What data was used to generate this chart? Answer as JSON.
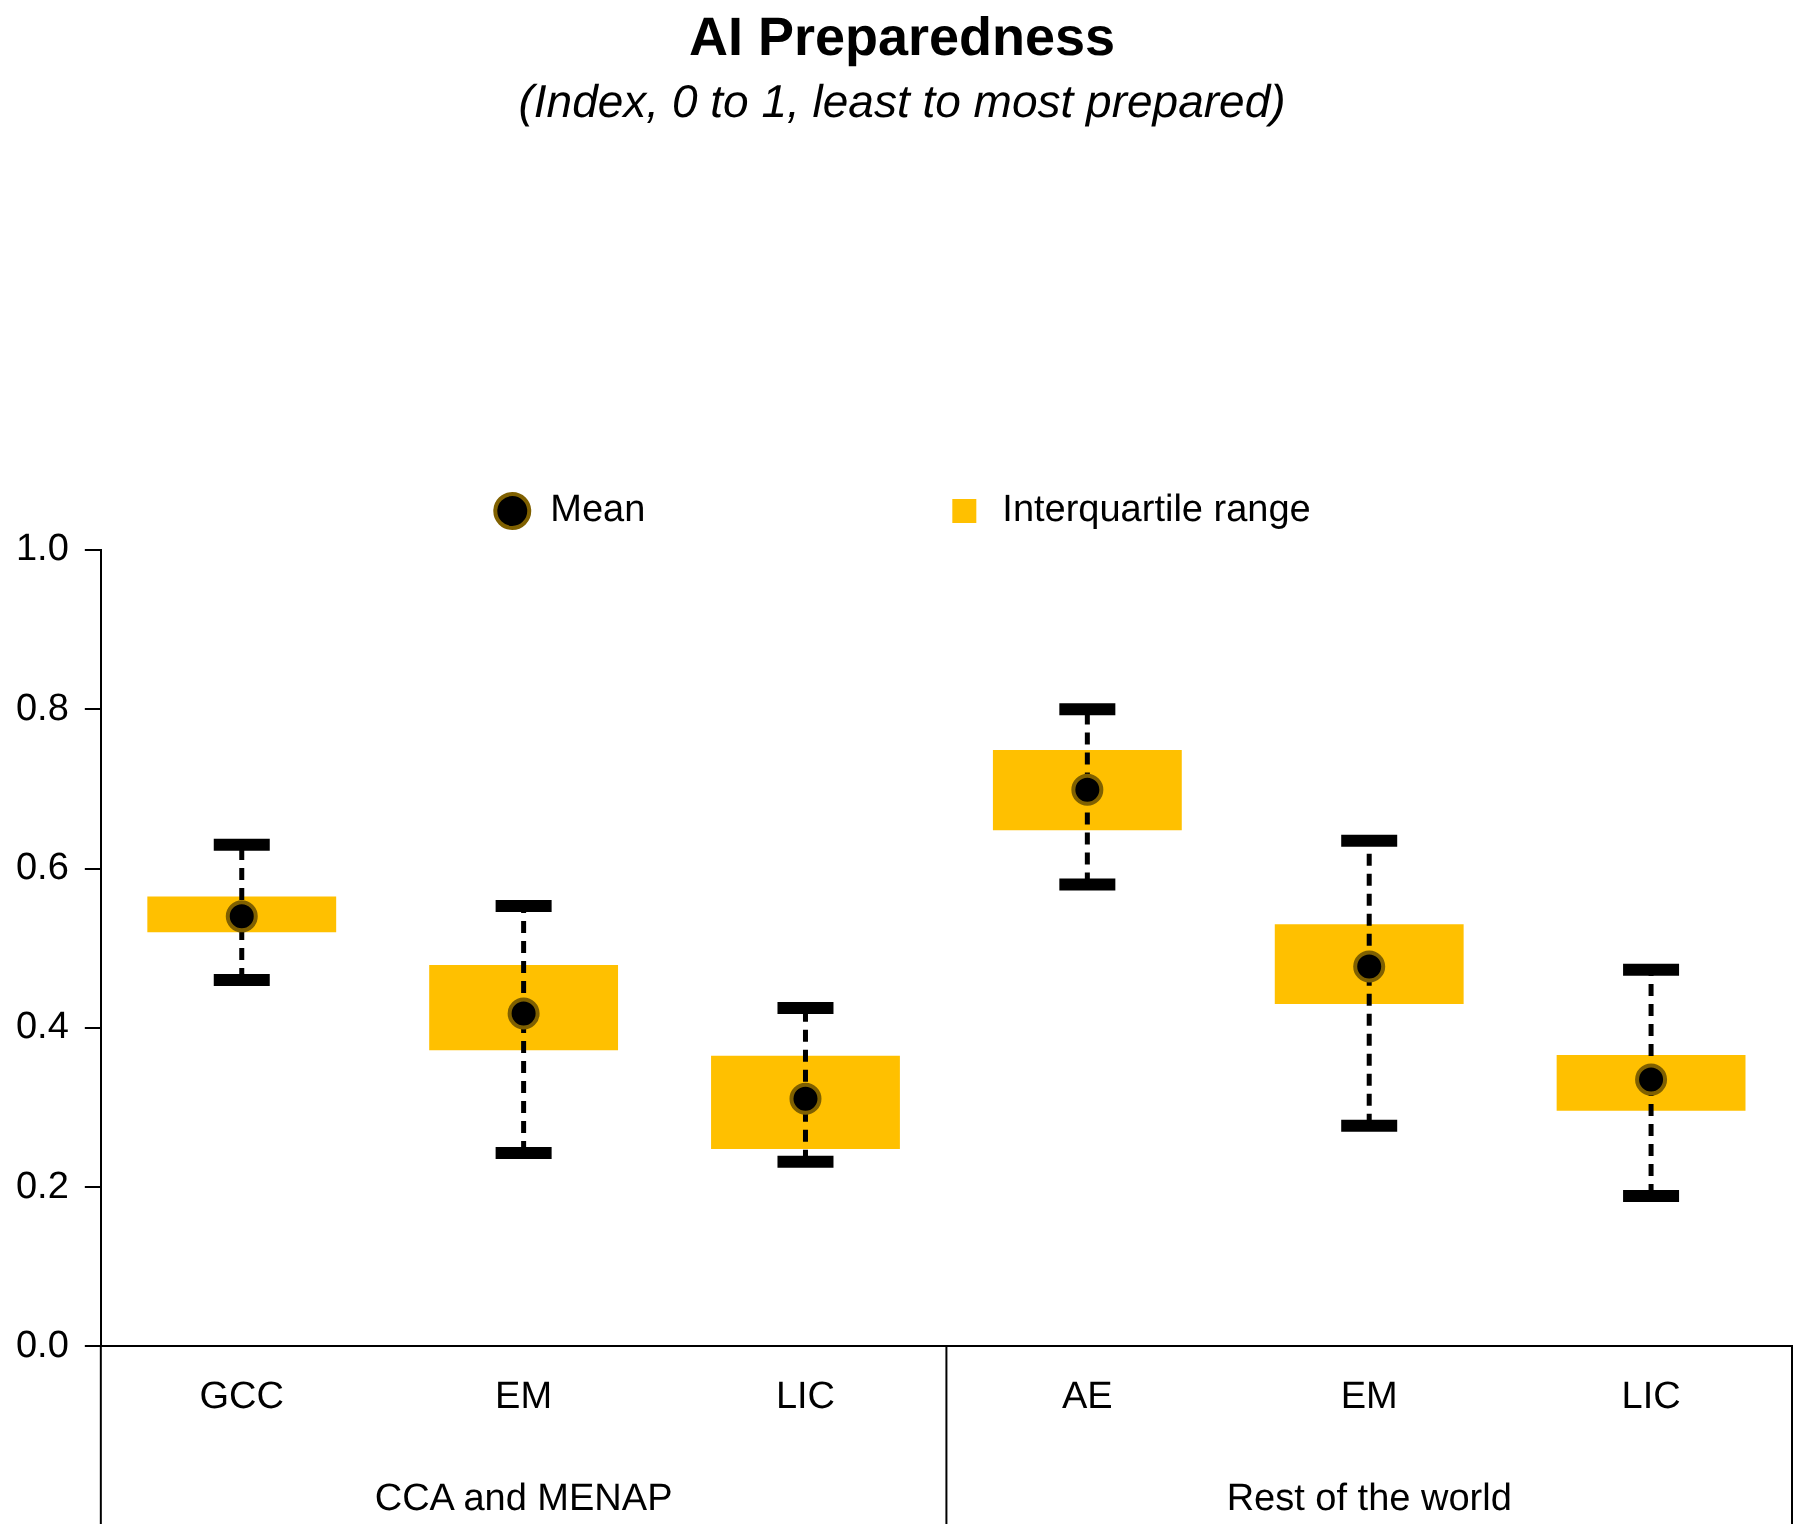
{
  "chart_data": {
    "type": "box",
    "title": "AI Preparedness",
    "subtitle": "(Index, 0 to 1, least to most prepared)",
    "categories": [
      "GCC",
      "EM",
      "LIC",
      "AE",
      "EM",
      "LIC"
    ],
    "annotations": [
      "CCA and MENAP",
      "Rest of the world"
    ],
    "series": [
      {
        "name": "Interquartile range",
        "color": "#ffc000",
        "boxes": [
          {
            "low": 0.46,
            "q1": 0.52,
            "q3": 0.565,
            "high": 0.63
          },
          {
            "low": 0.243,
            "q1": 0.372,
            "q3": 0.479,
            "high": 0.553
          },
          {
            "low": 0.232,
            "q1": 0.248,
            "q3": 0.365,
            "high": 0.425
          },
          {
            "low": 0.58,
            "q1": 0.648,
            "q3": 0.749,
            "high": 0.8
          },
          {
            "low": 0.277,
            "q1": 0.43,
            "q3": 0.53,
            "high": 0.635
          },
          {
            "low": 0.189,
            "q1": 0.296,
            "q3": 0.366,
            "high": 0.473
          }
        ]
      },
      {
        "type": "scatter",
        "name": "Mean",
        "color": "#000000",
        "values": [
          0.54,
          0.418,
          0.311,
          0.699,
          0.477,
          0.335
        ]
      }
    ],
    "ylim": [
      0,
      1
    ],
    "yticks": [
      {
        "value": 0,
        "label": "0.0"
      },
      0.2,
      0.4,
      0.6,
      0.8,
      {
        "value": 1,
        "label": "1.0"
      }
    ],
    "grid": false,
    "legend": "top",
    "marker": "circle",
    "line_style": "dashed"
  }
}
